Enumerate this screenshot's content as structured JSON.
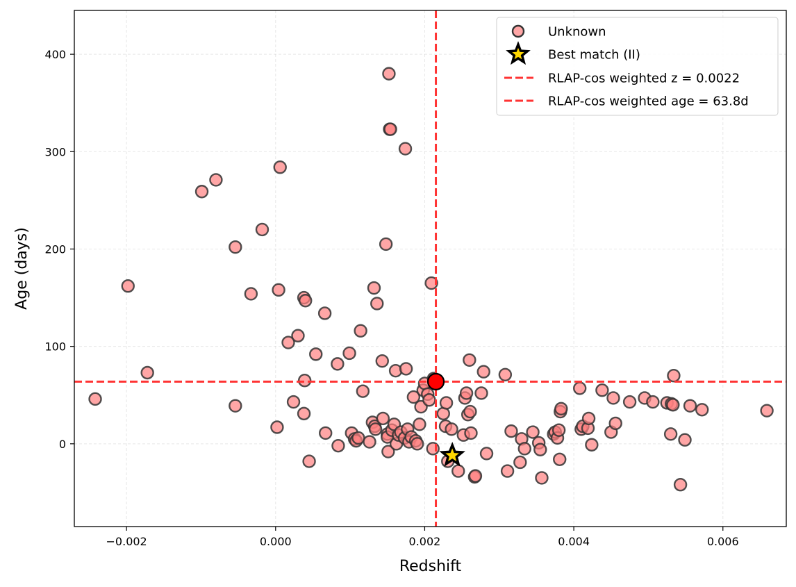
{
  "chart_data": {
    "type": "scatter",
    "xlabel": "Redshift",
    "ylabel": "Age (days)",
    "xlim": [
      -0.0027,
      0.00685
    ],
    "ylim": [
      -85,
      445
    ],
    "x_ticks": [
      {
        "value": -0.002,
        "label": "−0.002"
      },
      {
        "value": 0.0,
        "label": "0.000"
      },
      {
        "value": 0.002,
        "label": "0.002"
      },
      {
        "value": 0.004,
        "label": "0.004"
      },
      {
        "value": 0.006,
        "label": "0.006"
      }
    ],
    "y_ticks": [
      {
        "value": 0,
        "label": "0"
      },
      {
        "value": 100,
        "label": "100"
      },
      {
        "value": 200,
        "label": "200"
      },
      {
        "value": 300,
        "label": "300"
      },
      {
        "value": 400,
        "label": "400"
      }
    ],
    "grid": true,
    "legend_position": "top-right",
    "colors": {
      "unknown_fill": "#ff8080",
      "unknown_edge": "#333333",
      "marker_red": "#ff0000",
      "star_fill": "#ffd700",
      "line_red": "#ff3333"
    },
    "legend": [
      {
        "label": "Unknown",
        "symbol": "circle"
      },
      {
        "label": "Best match (II)",
        "symbol": "star"
      },
      {
        "label": "RLAP-cos weighted z = 0.0022",
        "symbol": "dashed-line"
      },
      {
        "label": "RLAP-cos weighted age = 63.8d",
        "symbol": "dashed-line"
      }
    ],
    "weighted_z": 0.00215,
    "weighted_age": 63.8,
    "best_match": {
      "x": 0.00237,
      "y": -12
    },
    "series": [
      {
        "points": [
          [
            -0.00242,
            46
          ],
          [
            -0.00198,
            162
          ],
          [
            -0.00172,
            73
          ],
          [
            -0.00099,
            259
          ],
          [
            -0.0008,
            271
          ],
          [
            -0.00054,
            202
          ],
          [
            -0.00054,
            39
          ],
          [
            -0.00033,
            154
          ],
          [
            -0.00018,
            220
          ],
          [
            4e-05,
            158
          ],
          [
            6e-05,
            284
          ],
          [
            2e-05,
            17
          ],
          [
            0.00017,
            104
          ],
          [
            0.00024,
            43
          ],
          [
            0.0003,
            111
          ],
          [
            0.00038,
            150
          ],
          [
            0.0004,
            147
          ],
          [
            0.00039,
            65
          ],
          [
            0.00038,
            31
          ],
          [
            0.00045,
            -18
          ],
          [
            0.00054,
            92
          ],
          [
            0.00066,
            134
          ],
          [
            0.00067,
            11
          ],
          [
            0.00083,
            82
          ],
          [
            0.00084,
            -2
          ],
          [
            0.00099,
            93
          ],
          [
            0.00102,
            11
          ],
          [
            0.00106,
            5
          ],
          [
            0.00108,
            3
          ],
          [
            0.00111,
            6
          ],
          [
            0.00114,
            116
          ],
          [
            0.00117,
            54
          ],
          [
            0.00126,
            2
          ],
          [
            0.0013,
            22
          ],
          [
            0.00132,
            160
          ],
          [
            0.00133,
            18
          ],
          [
            0.00134,
            15
          ],
          [
            0.00136,
            144
          ],
          [
            0.00143,
            85
          ],
          [
            0.00144,
            26
          ],
          [
            0.00148,
            205
          ],
          [
            0.0015,
            10
          ],
          [
            0.0015,
            7
          ],
          [
            0.00151,
            -8
          ],
          [
            0.00152,
            380
          ],
          [
            0.00153,
            323
          ],
          [
            0.00154,
            323
          ],
          [
            0.00156,
            14
          ],
          [
            0.00159,
            20
          ],
          [
            0.00161,
            75
          ],
          [
            0.00162,
            0
          ],
          [
            0.00165,
            9
          ],
          [
            0.00168,
            12
          ],
          [
            0.00173,
            6
          ],
          [
            0.00174,
            303
          ],
          [
            0.00175,
            77
          ],
          [
            0.00177,
            15
          ],
          [
            0.00179,
            2
          ],
          [
            0.00182,
            7
          ],
          [
            0.00185,
            48
          ],
          [
            0.00188,
            3
          ],
          [
            0.0019,
            0
          ],
          [
            0.00193,
            20
          ],
          [
            0.00195,
            38
          ],
          [
            0.00198,
            55
          ],
          [
            0.002,
            62
          ],
          [
            0.00204,
            51
          ],
          [
            0.00206,
            45
          ],
          [
            0.00209,
            165
          ],
          [
            0.00211,
            -5
          ],
          [
            0.00212,
            67
          ],
          [
            0.00225,
            31
          ],
          [
            0.00228,
            18
          ],
          [
            0.00229,
            42
          ],
          [
            0.00231,
            -18
          ],
          [
            0.00236,
            15
          ],
          [
            0.00245,
            -28
          ],
          [
            0.00252,
            9
          ],
          [
            0.00254,
            47
          ],
          [
            0.00256,
            52
          ],
          [
            0.00258,
            30
          ],
          [
            0.0026,
            86
          ],
          [
            0.00261,
            33
          ],
          [
            0.00262,
            11
          ],
          [
            0.00267,
            -34
          ],
          [
            0.00268,
            -33
          ],
          [
            0.00276,
            52
          ],
          [
            0.00279,
            74
          ],
          [
            0.00283,
            -10
          ],
          [
            0.00308,
            71
          ],
          [
            0.00311,
            -28
          ],
          [
            0.00316,
            13
          ],
          [
            0.00328,
            -19
          ],
          [
            0.0033,
            5
          ],
          [
            0.00334,
            -5
          ],
          [
            0.00345,
            12
          ],
          [
            0.00353,
            1
          ],
          [
            0.00355,
            -6
          ],
          [
            0.00357,
            -35
          ],
          [
            0.00373,
            10
          ],
          [
            0.00375,
            12
          ],
          [
            0.00378,
            6
          ],
          [
            0.0038,
            14
          ],
          [
            0.00381,
            -16
          ],
          [
            0.00382,
            33
          ],
          [
            0.00383,
            36
          ],
          [
            0.00408,
            57
          ],
          [
            0.0041,
            15
          ],
          [
            0.00412,
            18
          ],
          [
            0.00419,
            16
          ],
          [
            0.0042,
            26
          ],
          [
            0.00424,
            -1
          ],
          [
            0.00438,
            55
          ],
          [
            0.0045,
            12
          ],
          [
            0.00453,
            47
          ],
          [
            0.00456,
            21
          ],
          [
            0.00475,
            43
          ],
          [
            0.00495,
            47
          ],
          [
            0.00506,
            43
          ],
          [
            0.00525,
            42
          ],
          [
            0.0053,
            10
          ],
          [
            0.00531,
            41
          ],
          [
            0.00533,
            40
          ],
          [
            0.00534,
            70
          ],
          [
            0.00543,
            -42
          ],
          [
            0.00549,
            4
          ],
          [
            0.00556,
            39
          ],
          [
            0.00572,
            35
          ],
          [
            0.00659,
            34
          ]
        ]
      }
    ]
  }
}
